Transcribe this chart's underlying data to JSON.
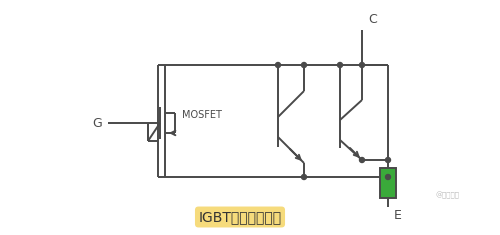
{
  "title": "IGBT理想等效电路",
  "title_bg": "#f5d76e",
  "watermark": "@电子电路",
  "bg_color": "#ffffff",
  "line_color": "#4a4a4a",
  "line_width": 1.4,
  "node_color": "#4a4a4a",
  "mosfet_label": "MOSFET",
  "label_G": "G",
  "label_C": "C",
  "label_E": "E",
  "resistor_color": "#3aaa3a"
}
